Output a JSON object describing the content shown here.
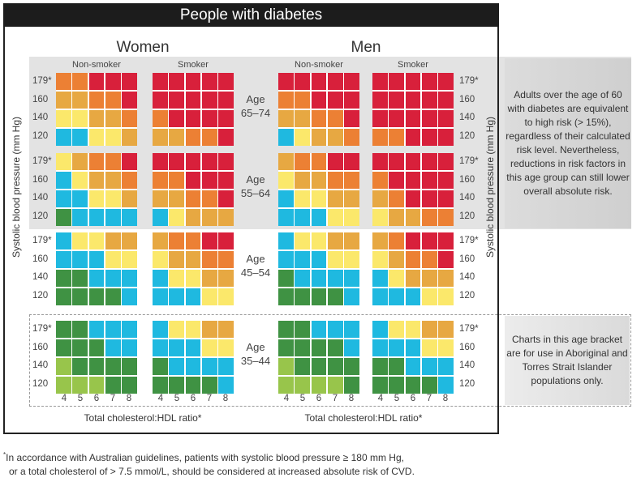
{
  "title": "People with diabetes",
  "sexes": [
    "Women",
    "Men"
  ],
  "smoking": [
    "Non-smoker",
    "Smoker",
    "Non-smoker",
    "Smoker"
  ],
  "ylabel": "Systolic blood pressure (mm Hg)",
  "xlabel": "Total cholesterol:HDL ratio*",
  "note_high_age": "Adults over the age of 60 with diabetes are equivalent to high risk (> 15%), regardless of their calculated risk level. Nevertheless, reductions in risk factors in this age group can still lower overall absolute risk.",
  "note_young_age": "Charts in this age bracket are for use in Aboriginal and Torres Strait Islander populations only.",
  "footnote_mark": "*",
  "footnote_line1": "In accordance with Australian guidelines, patients with systolic blood pressure ≥ 180 mm Hg,",
  "footnote_line2": "or a total cholesterol of > 7.5 mmol/L, should be considered at increased absolute risk of CVD.",
  "chart_data": {
    "type": "heatmap",
    "title": "People with diabetes",
    "xlabel": "Total cholesterol:HDL ratio*",
    "ylabel": "Systolic blood pressure (mm Hg)",
    "x_ticks": [
      "4",
      "5",
      "6",
      "7",
      "8"
    ],
    "y_ticks": [
      "179*",
      "160",
      "140",
      "120"
    ],
    "age_groups": [
      {
        "label": "Age",
        "range": "65–74"
      },
      {
        "label": "Age",
        "range": "55–64"
      },
      {
        "label": "Age",
        "range": "45–54"
      },
      {
        "label": "Age",
        "range": "35–44"
      }
    ],
    "category_colors": {
      "R": "#d8203b",
      "O": "#ec8034",
      "A": "#e7a842",
      "Y": "#fbe86b",
      "B": "#1fb9e0",
      "G": "#3f9243",
      "L": "#98c54b"
    },
    "panels": [
      "Women Non-smoker",
      "Women Smoker",
      "Men Non-smoker",
      "Men Smoker"
    ],
    "grids": [
      [
        [
          "OORRR",
          "AAOOR",
          "YYAAO",
          "BBYYA"
        ],
        [
          "RRRRR",
          "RRRRR",
          "ORRRR",
          "AAOOR"
        ],
        [
          "RRRRR",
          "OORRR",
          "AAOOR",
          "BYAAO"
        ],
        [
          "RRRRR",
          "RRRRR",
          "RRRRR",
          "OORRR"
        ]
      ],
      [
        [
          "YAOOR",
          "BYAAO",
          "BBYYA",
          "GBBBB"
        ],
        [
          "RRRRR",
          "OORRR",
          "AAOOR",
          "BYAAA"
        ],
        [
          "AOORR",
          "YAAOO",
          "BYYAA",
          "BBBYY"
        ],
        [
          "RRRRR",
          "ORRRR",
          "AORRR",
          "YAAOO"
        ]
      ],
      [
        [
          "BYYAA",
          "BBBYY",
          "GGBBB",
          "GGGGB"
        ],
        [
          "AOORR",
          "YAAOO",
          "BYYAA",
          "BBBYY"
        ],
        [
          "BYYAA",
          "BBBYY",
          "GBBBB",
          "GGGGB"
        ],
        [
          "AORRR",
          "YAOOR",
          "BYAAA",
          "BBBYY"
        ]
      ],
      [
        [
          "GGBBB",
          "GGGBB",
          "LGGGG",
          "LLLGG"
        ],
        [
          "BYYAA",
          "BBBYY",
          "GBBBB",
          "GGGGB"
        ],
        [
          "GGBBB",
          "GGGGB",
          "LGGGG",
          "LLLLG"
        ],
        [
          "BYYAA",
          "BBBYY",
          "GGBBB",
          "GGGGB"
        ]
      ]
    ]
  }
}
